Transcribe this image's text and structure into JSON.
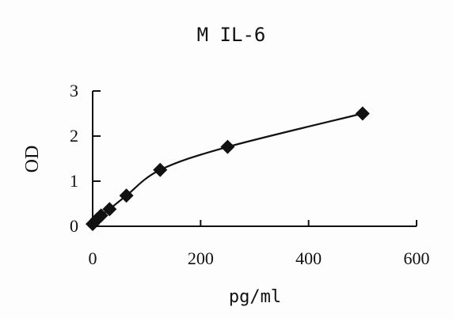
{
  "chart_data": {
    "type": "line",
    "title": "M IL-6",
    "xlabel": "pg/ml",
    "ylabel": "OD",
    "xlim": [
      0,
      600
    ],
    "ylim": [
      0,
      3
    ],
    "xticks": [
      "0",
      "200",
      "400",
      "600"
    ],
    "yticks": [
      "0",
      "1",
      "2",
      "3"
    ],
    "grid": false,
    "legend": "none",
    "marker": "diamond",
    "colors": {
      "line": "#111111",
      "marker": "#111111",
      "axis": "#111111"
    },
    "series": [
      {
        "x": [
          0,
          7.8,
          15.6,
          31.25,
          62.5,
          125,
          250,
          500
        ],
        "y": [
          0.05,
          0.15,
          0.24,
          0.38,
          0.68,
          1.25,
          1.76,
          2.5
        ]
      }
    ]
  }
}
